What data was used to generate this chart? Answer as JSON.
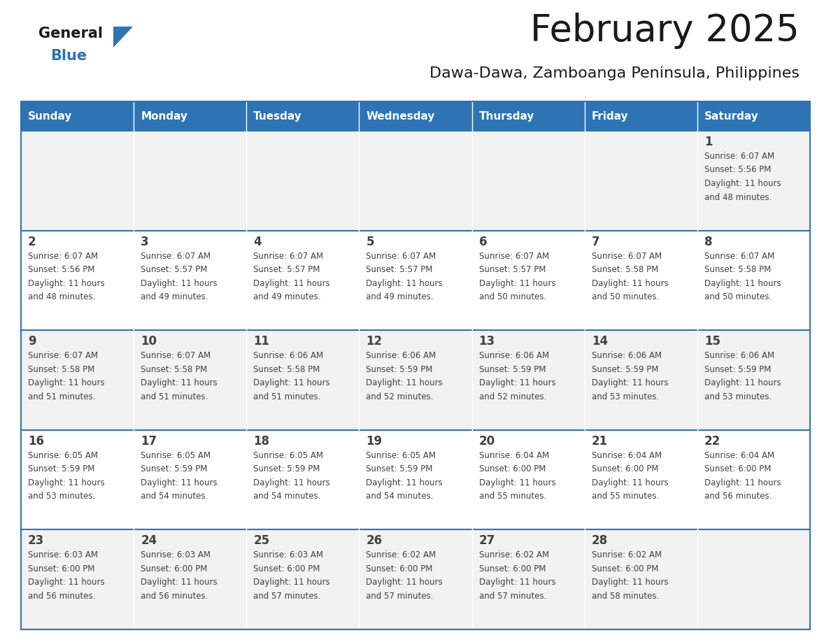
{
  "title": "February 2025",
  "subtitle": "Dawa-Dawa, Zamboanga Peninsula, Philippines",
  "days_of_week": [
    "Sunday",
    "Monday",
    "Tuesday",
    "Wednesday",
    "Thursday",
    "Friday",
    "Saturday"
  ],
  "header_bg": "#2E74B5",
  "header_text": "#FFFFFF",
  "cell_bg_light": "#F2F2F2",
  "cell_bg_white": "#FFFFFF",
  "row_line_color": "#2E74B5",
  "text_color": "#404040",
  "title_color": "#1a1a1a",
  "logo_blue_color": "#2E74B5",
  "weeks": [
    [
      {
        "day": null,
        "sunrise": null,
        "sunset": null,
        "daylight_line1": null,
        "daylight_line2": null
      },
      {
        "day": null,
        "sunrise": null,
        "sunset": null,
        "daylight_line1": null,
        "daylight_line2": null
      },
      {
        "day": null,
        "sunrise": null,
        "sunset": null,
        "daylight_line1": null,
        "daylight_line2": null
      },
      {
        "day": null,
        "sunrise": null,
        "sunset": null,
        "daylight_line1": null,
        "daylight_line2": null
      },
      {
        "day": null,
        "sunrise": null,
        "sunset": null,
        "daylight_line1": null,
        "daylight_line2": null
      },
      {
        "day": null,
        "sunrise": null,
        "sunset": null,
        "daylight_line1": null,
        "daylight_line2": null
      },
      {
        "day": 1,
        "sunrise": "6:07 AM",
        "sunset": "5:56 PM",
        "daylight_line1": "Daylight: 11 hours",
        "daylight_line2": "and 48 minutes."
      }
    ],
    [
      {
        "day": 2,
        "sunrise": "6:07 AM",
        "sunset": "5:56 PM",
        "daylight_line1": "Daylight: 11 hours",
        "daylight_line2": "and 48 minutes."
      },
      {
        "day": 3,
        "sunrise": "6:07 AM",
        "sunset": "5:57 PM",
        "daylight_line1": "Daylight: 11 hours",
        "daylight_line2": "and 49 minutes."
      },
      {
        "day": 4,
        "sunrise": "6:07 AM",
        "sunset": "5:57 PM",
        "daylight_line1": "Daylight: 11 hours",
        "daylight_line2": "and 49 minutes."
      },
      {
        "day": 5,
        "sunrise": "6:07 AM",
        "sunset": "5:57 PM",
        "daylight_line1": "Daylight: 11 hours",
        "daylight_line2": "and 49 minutes."
      },
      {
        "day": 6,
        "sunrise": "6:07 AM",
        "sunset": "5:57 PM",
        "daylight_line1": "Daylight: 11 hours",
        "daylight_line2": "and 50 minutes."
      },
      {
        "day": 7,
        "sunrise": "6:07 AM",
        "sunset": "5:58 PM",
        "daylight_line1": "Daylight: 11 hours",
        "daylight_line2": "and 50 minutes."
      },
      {
        "day": 8,
        "sunrise": "6:07 AM",
        "sunset": "5:58 PM",
        "daylight_line1": "Daylight: 11 hours",
        "daylight_line2": "and 50 minutes."
      }
    ],
    [
      {
        "day": 9,
        "sunrise": "6:07 AM",
        "sunset": "5:58 PM",
        "daylight_line1": "Daylight: 11 hours",
        "daylight_line2": "and 51 minutes."
      },
      {
        "day": 10,
        "sunrise": "6:07 AM",
        "sunset": "5:58 PM",
        "daylight_line1": "Daylight: 11 hours",
        "daylight_line2": "and 51 minutes."
      },
      {
        "day": 11,
        "sunrise": "6:06 AM",
        "sunset": "5:58 PM",
        "daylight_line1": "Daylight: 11 hours",
        "daylight_line2": "and 51 minutes."
      },
      {
        "day": 12,
        "sunrise": "6:06 AM",
        "sunset": "5:59 PM",
        "daylight_line1": "Daylight: 11 hours",
        "daylight_line2": "and 52 minutes."
      },
      {
        "day": 13,
        "sunrise": "6:06 AM",
        "sunset": "5:59 PM",
        "daylight_line1": "Daylight: 11 hours",
        "daylight_line2": "and 52 minutes."
      },
      {
        "day": 14,
        "sunrise": "6:06 AM",
        "sunset": "5:59 PM",
        "daylight_line1": "Daylight: 11 hours",
        "daylight_line2": "and 53 minutes."
      },
      {
        "day": 15,
        "sunrise": "6:06 AM",
        "sunset": "5:59 PM",
        "daylight_line1": "Daylight: 11 hours",
        "daylight_line2": "and 53 minutes."
      }
    ],
    [
      {
        "day": 16,
        "sunrise": "6:05 AM",
        "sunset": "5:59 PM",
        "daylight_line1": "Daylight: 11 hours",
        "daylight_line2": "and 53 minutes."
      },
      {
        "day": 17,
        "sunrise": "6:05 AM",
        "sunset": "5:59 PM",
        "daylight_line1": "Daylight: 11 hours",
        "daylight_line2": "and 54 minutes."
      },
      {
        "day": 18,
        "sunrise": "6:05 AM",
        "sunset": "5:59 PM",
        "daylight_line1": "Daylight: 11 hours",
        "daylight_line2": "and 54 minutes."
      },
      {
        "day": 19,
        "sunrise": "6:05 AM",
        "sunset": "5:59 PM",
        "daylight_line1": "Daylight: 11 hours",
        "daylight_line2": "and 54 minutes."
      },
      {
        "day": 20,
        "sunrise": "6:04 AM",
        "sunset": "6:00 PM",
        "daylight_line1": "Daylight: 11 hours",
        "daylight_line2": "and 55 minutes."
      },
      {
        "day": 21,
        "sunrise": "6:04 AM",
        "sunset": "6:00 PM",
        "daylight_line1": "Daylight: 11 hours",
        "daylight_line2": "and 55 minutes."
      },
      {
        "day": 22,
        "sunrise": "6:04 AM",
        "sunset": "6:00 PM",
        "daylight_line1": "Daylight: 11 hours",
        "daylight_line2": "and 56 minutes."
      }
    ],
    [
      {
        "day": 23,
        "sunrise": "6:03 AM",
        "sunset": "6:00 PM",
        "daylight_line1": "Daylight: 11 hours",
        "daylight_line2": "and 56 minutes."
      },
      {
        "day": 24,
        "sunrise": "6:03 AM",
        "sunset": "6:00 PM",
        "daylight_line1": "Daylight: 11 hours",
        "daylight_line2": "and 56 minutes."
      },
      {
        "day": 25,
        "sunrise": "6:03 AM",
        "sunset": "6:00 PM",
        "daylight_line1": "Daylight: 11 hours",
        "daylight_line2": "and 57 minutes."
      },
      {
        "day": 26,
        "sunrise": "6:02 AM",
        "sunset": "6:00 PM",
        "daylight_line1": "Daylight: 11 hours",
        "daylight_line2": "and 57 minutes."
      },
      {
        "day": 27,
        "sunrise": "6:02 AM",
        "sunset": "6:00 PM",
        "daylight_line1": "Daylight: 11 hours",
        "daylight_line2": "and 57 minutes."
      },
      {
        "day": 28,
        "sunrise": "6:02 AM",
        "sunset": "6:00 PM",
        "daylight_line1": "Daylight: 11 hours",
        "daylight_line2": "and 58 minutes."
      },
      {
        "day": null,
        "sunrise": null,
        "sunset": null,
        "daylight_line1": null,
        "daylight_line2": null
      }
    ]
  ]
}
